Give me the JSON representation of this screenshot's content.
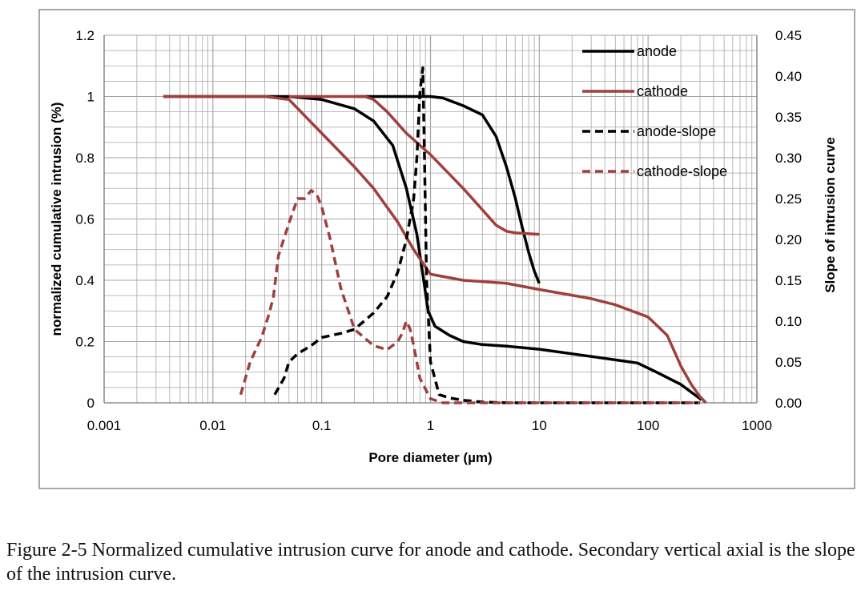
{
  "caption": "Figure 2-5 Normalized cumulative intrusion curve for anode and cathode. Secondary vertical axial is the slope of the intrusion curve.",
  "colors": {
    "anode": "#000000",
    "cathode": "#a0403c",
    "grid": "#a6a6a6",
    "frame": "#8c8c8c"
  },
  "chart_data": {
    "type": "line",
    "xlabel": "Pore diameter (µm)",
    "ylabel": "normalized cumulative intrusion (%)",
    "y2label": "Slope of intrusion curve",
    "xscale": "log",
    "xlim": [
      0.001,
      1000
    ],
    "ylim": [
      0,
      1.2
    ],
    "y2lim": [
      0,
      0.45
    ],
    "grid": true,
    "legend_position": "top-right",
    "x_ticks": [
      "0.001",
      "0.01",
      "0.1",
      "1",
      "10",
      "100",
      "1000"
    ],
    "y_ticks": [
      "0",
      "0.2",
      "0.4",
      "0.6",
      "0.8",
      "1",
      "1.2"
    ],
    "y2_ticks": [
      "0.00",
      "0.05",
      "0.10",
      "0.15",
      "0.20",
      "0.25",
      "0.30",
      "0.35",
      "0.40",
      "0.45"
    ],
    "series": [
      {
        "name": "anode",
        "axis": "left",
        "style": "solid",
        "color": "#000000",
        "x": [
          0.0035,
          0.01,
          0.05,
          0.1,
          0.2,
          0.3,
          0.45,
          0.6,
          0.75,
          0.85,
          0.95,
          1.1,
          1.5,
          2,
          3,
          5,
          7,
          10,
          20,
          50,
          80,
          120,
          200,
          260,
          310
        ],
        "y": [
          1,
          1,
          1,
          0.99,
          0.96,
          0.92,
          0.84,
          0.7,
          0.55,
          0.42,
          0.3,
          0.25,
          0.22,
          0.2,
          0.19,
          0.185,
          0.18,
          0.175,
          0.16,
          0.14,
          0.13,
          0.1,
          0.06,
          0.03,
          0.01
        ]
      },
      {
        "name": "anode",
        "axis": "left",
        "style": "solid",
        "color": "#000000",
        "x": [
          0.2,
          0.5,
          0.8,
          1.0,
          1.3,
          2,
          3,
          4,
          5,
          6,
          7,
          8,
          9,
          10
        ],
        "y": [
          1,
          1,
          1,
          1.0,
          0.995,
          0.97,
          0.94,
          0.87,
          0.77,
          0.67,
          0.57,
          0.49,
          0.43,
          0.39
        ]
      },
      {
        "name": "cathode",
        "axis": "left",
        "style": "solid",
        "color": "#a0403c",
        "x": [
          0.0035,
          0.01,
          0.02,
          0.03,
          0.05,
          0.1,
          0.2,
          0.3,
          0.5,
          0.7,
          1,
          2,
          5,
          10,
          30,
          50,
          100,
          150,
          200,
          250,
          300,
          340
        ],
        "y": [
          1,
          1,
          1,
          1,
          0.99,
          0.88,
          0.77,
          0.7,
          0.59,
          0.5,
          0.42,
          0.4,
          0.39,
          0.37,
          0.34,
          0.32,
          0.28,
          0.22,
          0.12,
          0.06,
          0.02,
          0.0
        ]
      },
      {
        "name": "cathode",
        "axis": "left",
        "style": "solid",
        "color": "#a0403c",
        "x": [
          0.05,
          0.1,
          0.15,
          0.25,
          0.3,
          0.4,
          0.6,
          1,
          2,
          3,
          4,
          5,
          6,
          8,
          10
        ],
        "y": [
          1,
          1,
          1,
          1.0,
          0.99,
          0.95,
          0.88,
          0.81,
          0.7,
          0.63,
          0.58,
          0.56,
          0.555,
          0.552,
          0.55
        ]
      },
      {
        "name": "anode-slope",
        "axis": "right",
        "style": "dashed",
        "color": "#000000",
        "x": [
          0.037,
          0.045,
          0.05,
          0.06,
          0.08,
          0.1,
          0.15,
          0.2,
          0.3,
          0.4,
          0.5,
          0.6,
          0.7,
          0.75,
          0.8,
          0.85,
          0.88,
          0.92,
          1.0,
          1.2,
          1.5,
          2,
          3,
          5,
          10,
          50,
          100,
          300
        ],
        "y": [
          0.01,
          0.03,
          0.05,
          0.06,
          0.07,
          0.08,
          0.085,
          0.09,
          0.11,
          0.13,
          0.16,
          0.2,
          0.25,
          0.3,
          0.38,
          0.41,
          0.3,
          0.15,
          0.05,
          0.01,
          0.006,
          0.003,
          0.001,
          0.0,
          0.0,
          0.0,
          0.0,
          0.0
        ]
      },
      {
        "name": "cathode-slope",
        "axis": "right",
        "style": "dashed",
        "color": "#a0403c",
        "x": [
          0.018,
          0.022,
          0.028,
          0.033,
          0.036,
          0.04,
          0.05,
          0.06,
          0.07,
          0.08,
          0.09,
          0.1,
          0.12,
          0.15,
          0.2,
          0.3,
          0.4,
          0.5,
          0.55,
          0.6,
          0.65,
          0.7,
          0.8,
          1.0,
          1.3,
          2,
          5,
          10,
          50,
          100,
          300
        ],
        "y": [
          0.01,
          0.05,
          0.08,
          0.11,
          0.13,
          0.18,
          0.22,
          0.25,
          0.25,
          0.26,
          0.255,
          0.24,
          0.2,
          0.14,
          0.09,
          0.07,
          0.065,
          0.075,
          0.085,
          0.1,
          0.09,
          0.07,
          0.03,
          0.005,
          0.0,
          0.0,
          0.0,
          0.0,
          0.0,
          0.0,
          0.0
        ]
      }
    ]
  }
}
